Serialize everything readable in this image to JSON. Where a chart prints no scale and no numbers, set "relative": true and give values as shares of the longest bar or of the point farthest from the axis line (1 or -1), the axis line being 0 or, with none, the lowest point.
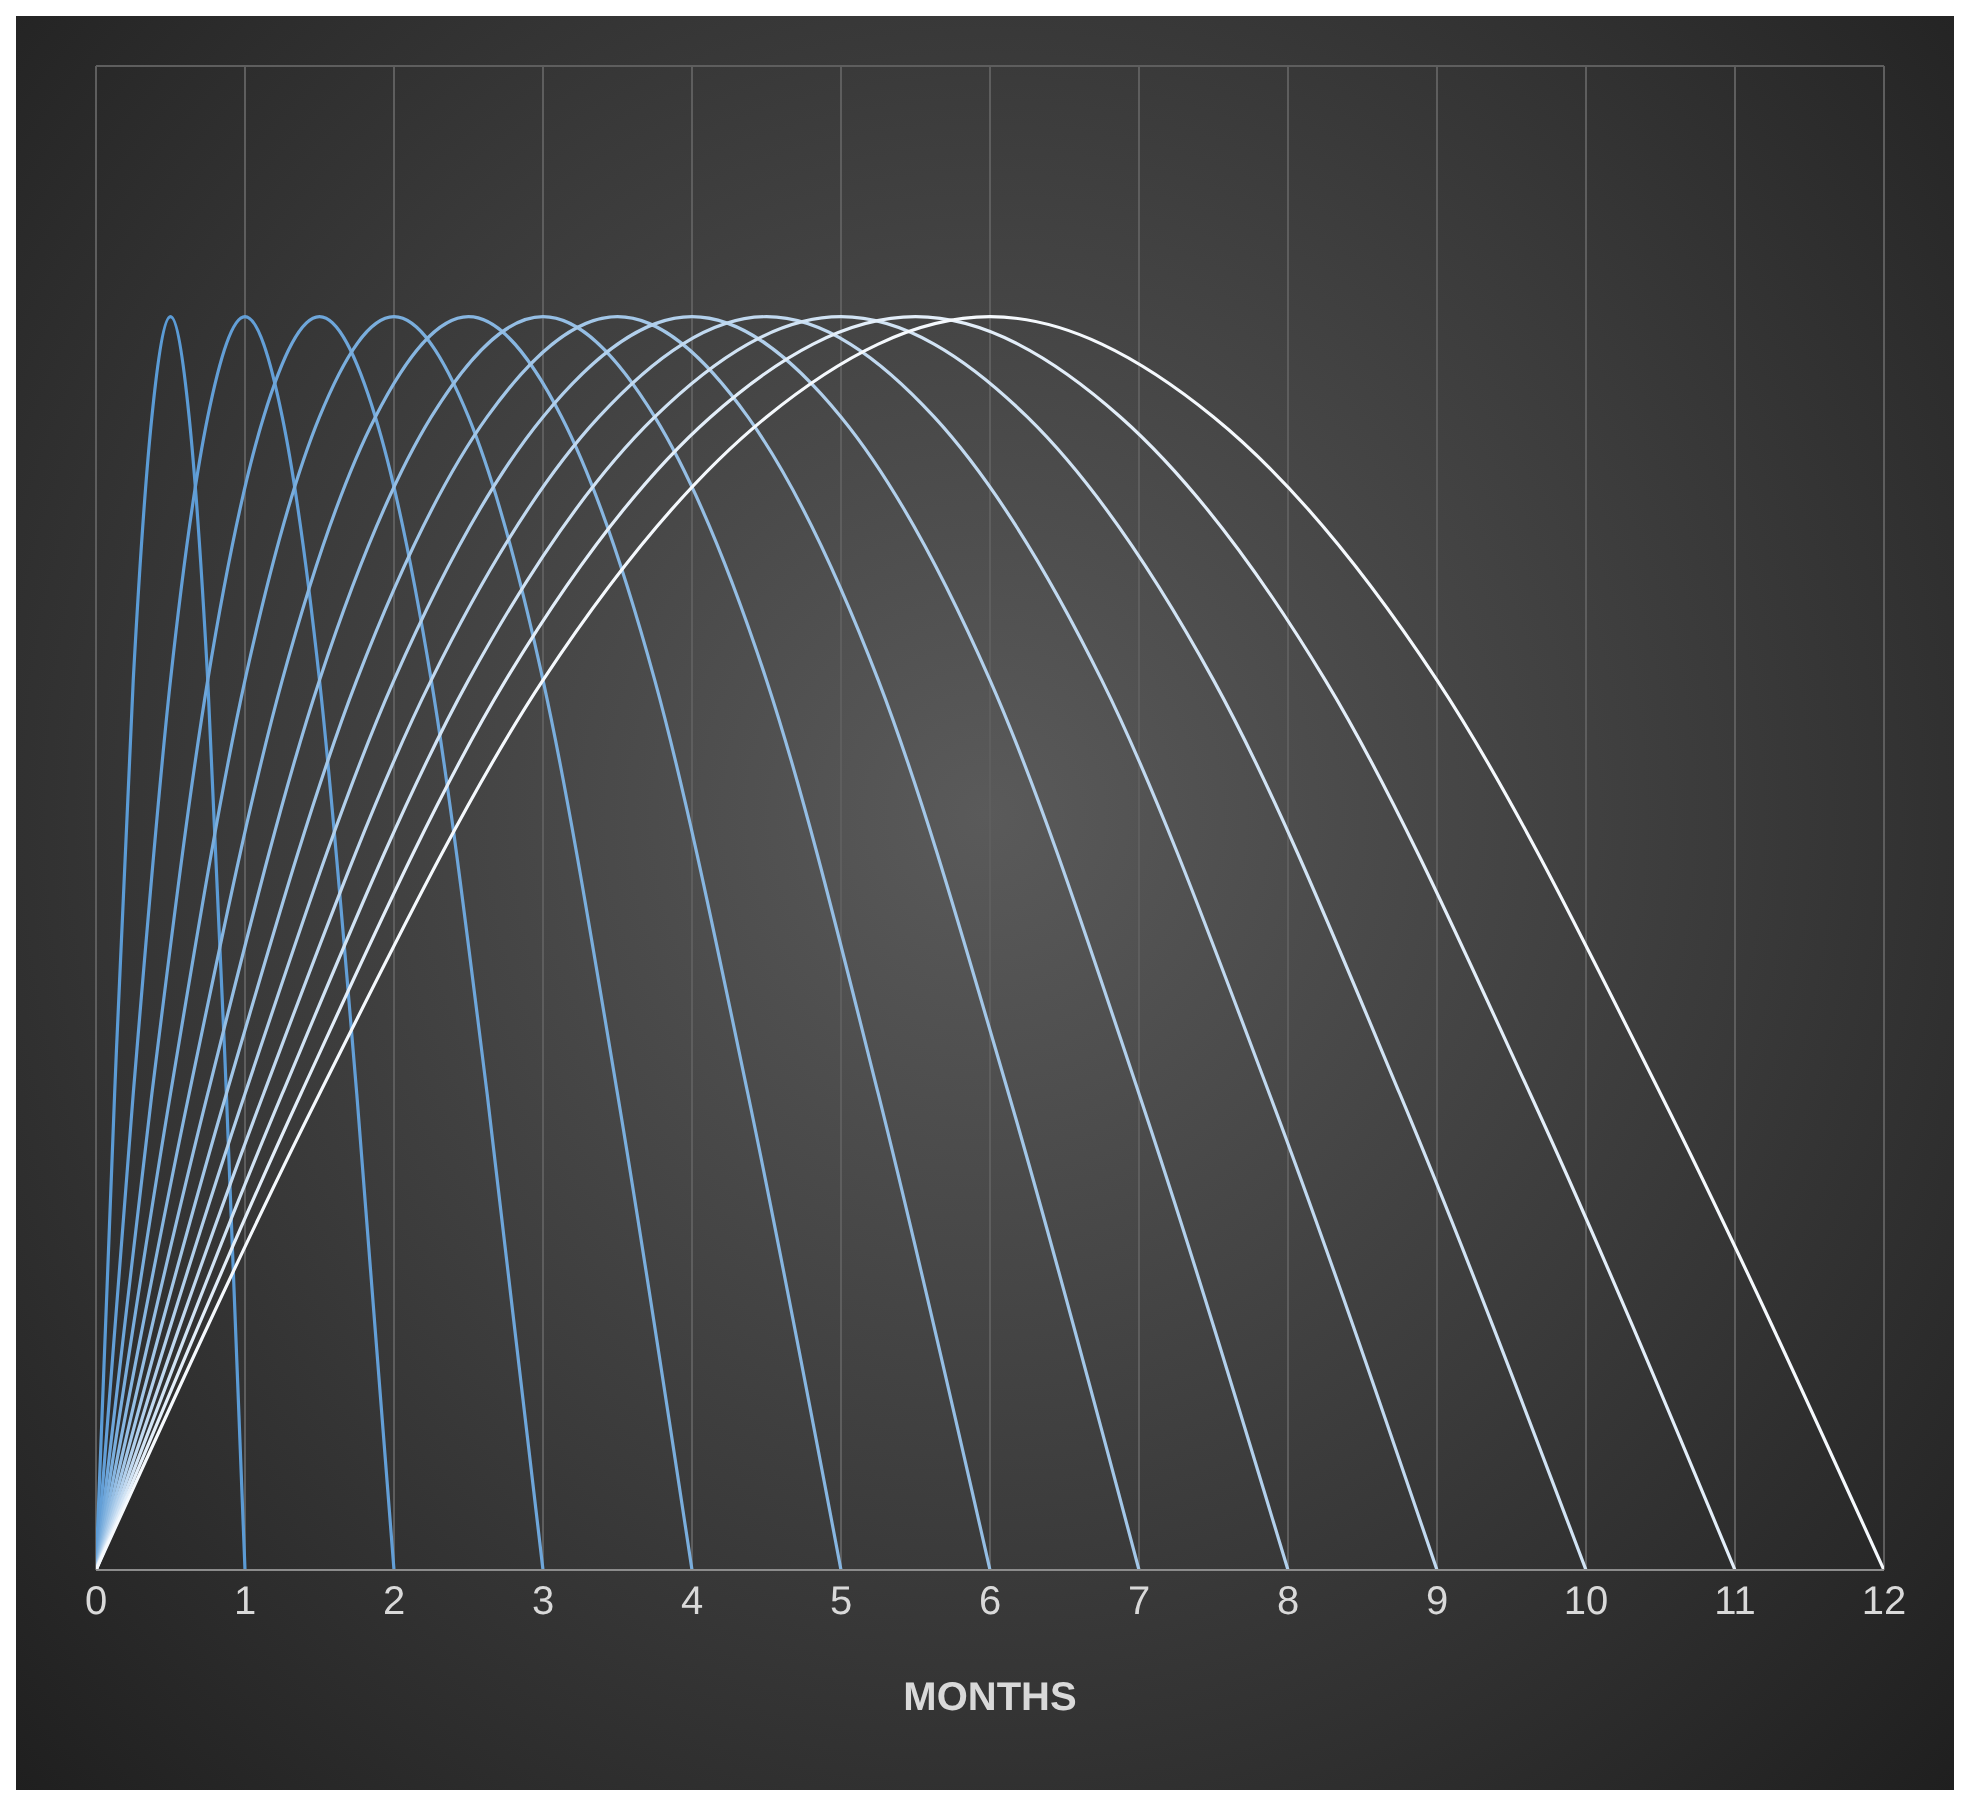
{
  "chart_data": {
    "type": "line",
    "xlabel": "MONTHS",
    "relative": true,
    "xlim": [
      0,
      12
    ],
    "xticks": [
      0,
      1,
      2,
      3,
      4,
      5,
      6,
      7,
      8,
      9,
      10,
      11,
      12
    ],
    "grid": true,
    "marker": "none",
    "line_style": "solid",
    "series": [
      {
        "color": "#5b9bd5",
        "x": [
          0,
          0.125,
          0.25,
          0.375,
          0.5,
          0.625,
          0.75,
          0.875,
          1
        ],
        "values": [
          0,
          0.38,
          0.71,
          0.92,
          1,
          0.92,
          0.71,
          0.38,
          0
        ]
      },
      {
        "color": "#639fd7",
        "x": [
          0,
          0.25,
          0.5,
          0.75,
          1,
          1.25,
          1.5,
          1.75,
          2
        ],
        "values": [
          0,
          0.38,
          0.71,
          0.92,
          1,
          0.92,
          0.71,
          0.38,
          0
        ]
      },
      {
        "color": "#6ea6da",
        "x": [
          0,
          0.375,
          0.75,
          1.125,
          1.5,
          1.875,
          2.25,
          2.625,
          3
        ],
        "values": [
          0,
          0.38,
          0.71,
          0.92,
          1,
          0.92,
          0.71,
          0.38,
          0
        ]
      },
      {
        "color": "#7aaedd",
        "x": [
          0,
          0.5,
          1,
          1.5,
          2,
          2.5,
          3,
          3.5,
          4
        ],
        "values": [
          0,
          0.38,
          0.71,
          0.92,
          1,
          0.92,
          0.71,
          0.38,
          0
        ]
      },
      {
        "color": "#87b6e1",
        "x": [
          0,
          0.625,
          1.25,
          1.875,
          2.5,
          3.125,
          3.75,
          4.375,
          5
        ],
        "values": [
          0,
          0.38,
          0.71,
          0.92,
          1,
          0.92,
          0.71,
          0.38,
          0
        ]
      },
      {
        "color": "#95bee4",
        "x": [
          0,
          0.75,
          1.5,
          2.25,
          3,
          3.75,
          4.5,
          5.25,
          6
        ],
        "values": [
          0,
          0.38,
          0.71,
          0.92,
          1,
          0.92,
          0.71,
          0.38,
          0
        ]
      },
      {
        "color": "#a3c7e8",
        "x": [
          0,
          0.875,
          1.75,
          2.625,
          3.5,
          4.375,
          5.25,
          6.125,
          7
        ],
        "values": [
          0,
          0.38,
          0.71,
          0.92,
          1,
          0.92,
          0.71,
          0.38,
          0
        ]
      },
      {
        "color": "#b2d0ec",
        "x": [
          0,
          1,
          2,
          3,
          4,
          5,
          6,
          7,
          8
        ],
        "values": [
          0,
          0.38,
          0.71,
          0.92,
          1,
          0.92,
          0.71,
          0.38,
          0
        ]
      },
      {
        "color": "#c1d9f0",
        "x": [
          0,
          1.125,
          2.25,
          3.375,
          4.5,
          5.625,
          6.75,
          7.875,
          9
        ],
        "values": [
          0,
          0.38,
          0.71,
          0.92,
          1,
          0.92,
          0.71,
          0.38,
          0
        ]
      },
      {
        "color": "#d1e3f4",
        "x": [
          0,
          1.25,
          2.5,
          3.75,
          5,
          6.25,
          7.5,
          8.75,
          10
        ],
        "values": [
          0,
          0.38,
          0.71,
          0.92,
          1,
          0.92,
          0.71,
          0.38,
          0
        ]
      },
      {
        "color": "#e3eef9",
        "x": [
          0,
          1.375,
          2.75,
          4.125,
          5.5,
          6.875,
          8.25,
          9.625,
          11
        ],
        "values": [
          0,
          0.38,
          0.71,
          0.92,
          1,
          0.92,
          0.71,
          0.38,
          0
        ]
      },
      {
        "color": "#f5f9fd",
        "x": [
          0,
          1.5,
          3,
          4.5,
          6,
          7.5,
          9,
          10.5,
          12
        ],
        "values": [
          0,
          0.38,
          0.71,
          0.92,
          1,
          0.92,
          0.71,
          0.38,
          0
        ]
      }
    ]
  }
}
